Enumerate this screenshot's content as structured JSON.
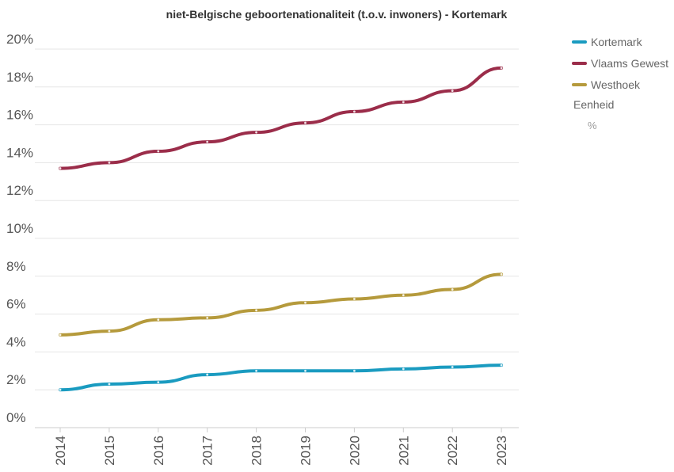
{
  "chart_data": {
    "type": "line",
    "title": "niet-Belgische geboortenationaliteit (t.o.v. inwoners) - Kortemark",
    "x": [
      "2014",
      "2015",
      "2016",
      "2017",
      "2018",
      "2019",
      "2020",
      "2021",
      "2022",
      "2023"
    ],
    "yticks": [
      "0%",
      "2%",
      "4%",
      "6%",
      "8%",
      "10%",
      "12%",
      "14%",
      "16%",
      "18%",
      "20%"
    ],
    "ylim": [
      0,
      20
    ],
    "grid": true,
    "legend_position": "right",
    "unit_label": "Eenheid",
    "unit_value": "%",
    "series": [
      {
        "name": "Kortemark",
        "color": "#1a9bc0",
        "values": [
          2.0,
          2.3,
          2.4,
          2.8,
          3.0,
          3.0,
          3.0,
          3.1,
          3.2,
          3.3
        ]
      },
      {
        "name": "Vlaams Gewest",
        "color": "#9b2d4a",
        "values": [
          13.7,
          14.0,
          14.6,
          15.1,
          15.6,
          16.1,
          16.7,
          17.2,
          17.8,
          19.0
        ]
      },
      {
        "name": "Westhoek",
        "color": "#b59a3c",
        "values": [
          4.9,
          5.1,
          5.7,
          5.8,
          6.2,
          6.6,
          6.8,
          7.0,
          7.3,
          8.1
        ]
      }
    ]
  }
}
